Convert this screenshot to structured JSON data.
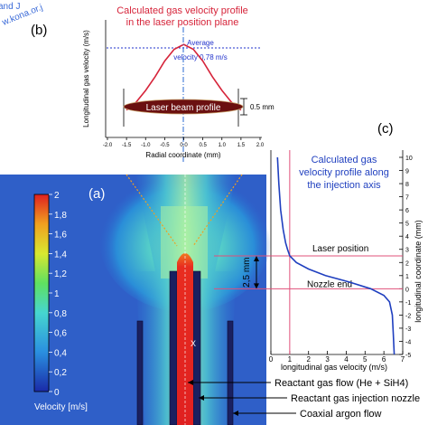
{
  "watermark": [
    "and J",
    "w.kona.or.j"
  ],
  "panel_b": {
    "letter": "(b)",
    "title_lines": [
      "Calculated gas velocity profile",
      "in the laser position plane"
    ],
    "average_lines": [
      "Average",
      "velocity 0,78 m/s"
    ],
    "beam_label": "Laser beam profile",
    "beam_size": "0.5 mm"
  },
  "panel_c": {
    "letter": "(c)",
    "title_lines": [
      "Calculated gas",
      "velocity profile along",
      "the injection axis"
    ],
    "laser_label": "Laser position",
    "nozzle_label": "Nozzle end",
    "gap_label": "2,5 mm"
  },
  "panel_a": {
    "letter": "(a)",
    "colorbar_ticks": [
      "0",
      "0,2",
      "0,4",
      "0,6",
      "0,8",
      "1",
      "1,2",
      "1,4",
      "1,6",
      "1,8",
      "2"
    ],
    "colorbar_label": "Velocity [m/s]",
    "callouts": [
      "Reactant gas flow (He + SiH4)",
      "Reactant gas injection nozzle",
      "Coaxial argon flow"
    ]
  },
  "colors": {
    "profile": "#d6243a",
    "axis_curve": "#1f3fbf",
    "average_line": "#2233cc",
    "beam": "#6b1010",
    "panel_title": "#d6243a",
    "panel_c_title": "#1f3fbf"
  },
  "chart_data": [
    {
      "type": "line",
      "title": "Calculated gas velocity profile in the laser position plane",
      "xlabel": "Radial coordinate (mm)",
      "ylabel": "Longitudinal gas velocity (m/s)",
      "x_ticks": [
        "-2.0",
        "-1.5",
        "-1.0",
        "-0.5",
        "0.0",
        "0.5",
        "1.0",
        "1.5",
        "2.0"
      ],
      "xlim": [
        -2.0,
        2.0
      ],
      "ylim": [
        0,
        1.2
      ],
      "average_value": 0.78,
      "series": [
        {
          "x": [
            -1.5,
            -1.25,
            -1.0,
            -0.75,
            -0.5,
            -0.25,
            0.0,
            0.25,
            0.5,
            0.75,
            1.0,
            1.25,
            1.5
          ],
          "values": [
            0.28,
            0.36,
            0.48,
            0.62,
            0.78,
            0.9,
            0.95,
            0.9,
            0.78,
            0.62,
            0.48,
            0.36,
            0.28
          ]
        }
      ]
    },
    {
      "type": "line",
      "title": "Calculated gas velocity profile along the injection axis",
      "xlabel": "longitudinal gas velocity (m/s)",
      "ylabel": "longitudinal coordinate (mm)",
      "x_ticks": [
        "0",
        "1",
        "2",
        "3",
        "4",
        "5",
        "6",
        "7"
      ],
      "y_ticks": [
        "-5",
        "-4",
        "-3",
        "-2",
        "-1",
        "0",
        "1",
        "2",
        "3",
        "4",
        "5",
        "6",
        "7",
        "8",
        "9",
        "10"
      ],
      "xlim": [
        0,
        7
      ],
      "ylim": [
        -5,
        10
      ],
      "markers": {
        "laser_position_mm": 2.5,
        "nozzle_end_mm": 0.0,
        "vertical_line_velocity": 1.0
      },
      "series": [
        {
          "y": [
            10,
            8,
            6,
            4.5,
            3.5,
            3.0,
            2.5,
            2.0,
            1.5,
            1.0,
            0.5,
            0.0,
            -0.5,
            -1.0,
            -2.0,
            -3.5,
            -5.0
          ],
          "values": [
            0.35,
            0.42,
            0.52,
            0.65,
            0.78,
            0.88,
            1.0,
            1.35,
            2.0,
            2.9,
            4.2,
            5.3,
            6.0,
            6.3,
            6.45,
            6.5,
            6.55
          ]
        }
      ]
    }
  ]
}
